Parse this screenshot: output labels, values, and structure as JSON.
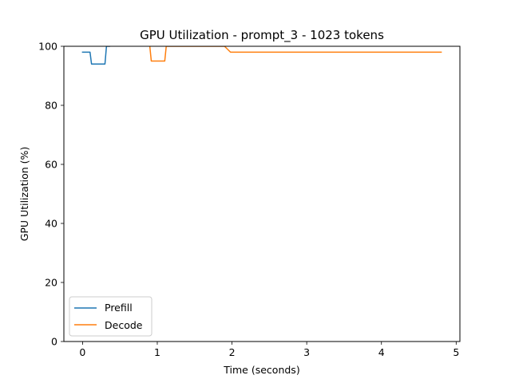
{
  "chart_data": {
    "type": "line",
    "title": "GPU Utilization - prompt_3 - 1023 tokens",
    "xlabel": "Time (seconds)",
    "ylabel": "GPU Utilization (%)",
    "xlim": [
      -0.25,
      5.05
    ],
    "ylim": [
      0,
      100
    ],
    "xticks": [
      0,
      1,
      2,
      3,
      4,
      5
    ],
    "yticks": [
      0,
      20,
      40,
      60,
      80,
      100
    ],
    "grid": false,
    "legend": "lower-left",
    "series": [
      {
        "name": "Prefill",
        "color": "#1f77b4",
        "x": [
          0.0,
          0.1,
          0.12,
          0.3,
          0.32,
          0.36
        ],
        "y": [
          98,
          98,
          94,
          94,
          100,
          100
        ]
      },
      {
        "name": "Decode",
        "color": "#ff7f0e",
        "x": [
          0.9,
          0.92,
          1.1,
          1.12,
          1.16,
          1.9,
          1.98,
          4.8
        ],
        "y": [
          100,
          95,
          95,
          100,
          100,
          100,
          98,
          98
        ]
      }
    ]
  }
}
